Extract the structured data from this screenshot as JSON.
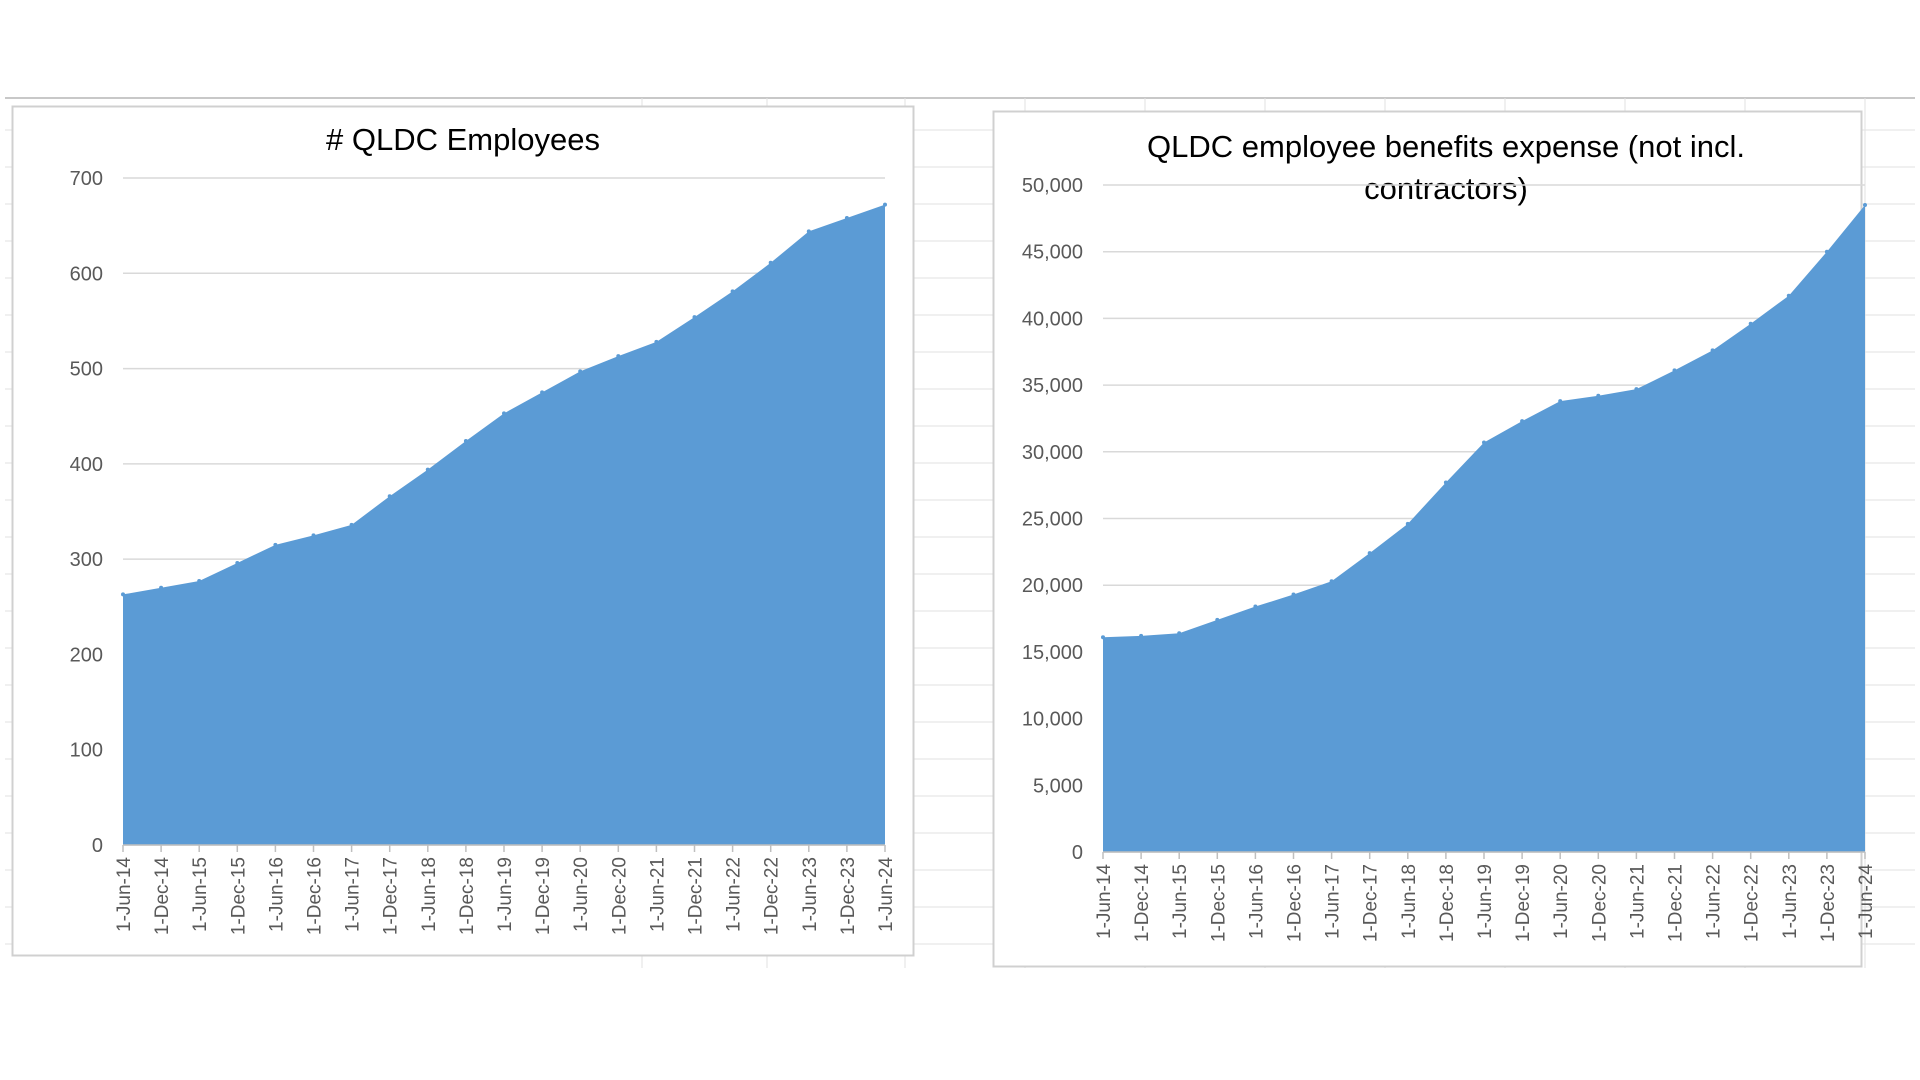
{
  "colors": {
    "area_fill": "#5B9BD5",
    "gridline": "#D9D9D9",
    "axis_text": "#595959",
    "title_text": "#595959",
    "sheet_grid": "#E2E2E2",
    "chart_border": "#D0D0D0"
  },
  "chart_data": [
    {
      "type": "area",
      "title": "# QLDC Employees",
      "xlabel": "",
      "ylabel": "",
      "ylim": [
        0,
        700
      ],
      "y_ticks": [
        "0",
        "100",
        "200",
        "300",
        "400",
        "500",
        "600",
        "700"
      ],
      "y_tick_values": [
        0,
        100,
        200,
        300,
        400,
        500,
        600,
        700
      ],
      "grid": true,
      "categories": [
        "1-Jun-14",
        "1-Dec-14",
        "1-Jun-15",
        "1-Dec-15",
        "1-Jun-16",
        "1-Dec-16",
        "1-Jun-17",
        "1-Dec-17",
        "1-Jun-18",
        "1-Dec-18",
        "1-Jun-19",
        "1-Dec-19",
        "1-Jun-20",
        "1-Dec-20",
        "1-Jun-21",
        "1-Dec-21",
        "1-Jun-22",
        "1-Dec-22",
        "1-Jun-23",
        "1-Dec-23",
        "1-Jun-24"
      ],
      "values": [
        263,
        270,
        277,
        296,
        315,
        325,
        336,
        366,
        394,
        424,
        453,
        475,
        497,
        513,
        528,
        554,
        581,
        611,
        644,
        658,
        672
      ]
    },
    {
      "type": "area",
      "title": "QLDC employee benefits expense (not incl. contractors)",
      "title_lines": [
        "QLDC employee benefits expense (not incl.",
        "contractors)"
      ],
      "xlabel": "",
      "ylabel": "",
      "ylim": [
        0,
        50000
      ],
      "y_ticks": [
        "0",
        "5,000",
        "10,000",
        "15,000",
        "20,000",
        "25,000",
        "30,000",
        "35,000",
        "40,000",
        "45,000",
        "50,000"
      ],
      "y_tick_values": [
        0,
        5000,
        10000,
        15000,
        20000,
        25000,
        30000,
        35000,
        40000,
        45000,
        50000
      ],
      "grid": true,
      "categories": [
        "1-Jun-14",
        "1-Dec-14",
        "1-Jun-15",
        "1-Dec-15",
        "1-Jun-16",
        "1-Dec-16",
        "1-Jun-17",
        "1-Dec-17",
        "1-Jun-18",
        "1-Dec-18",
        "1-Jun-19",
        "1-Dec-19",
        "1-Jun-20",
        "1-Dec-20",
        "1-Jun-21",
        "1-Dec-21",
        "1-Jun-22",
        "1-Dec-22",
        "1-Jun-23",
        "1-Dec-23",
        "1-Jun-24"
      ],
      "values": [
        16100,
        16200,
        16400,
        17400,
        18400,
        19300,
        20300,
        22400,
        24600,
        27700,
        30700,
        32300,
        33800,
        34200,
        34700,
        36100,
        37600,
        39600,
        41700,
        45000,
        48500
      ]
    }
  ]
}
